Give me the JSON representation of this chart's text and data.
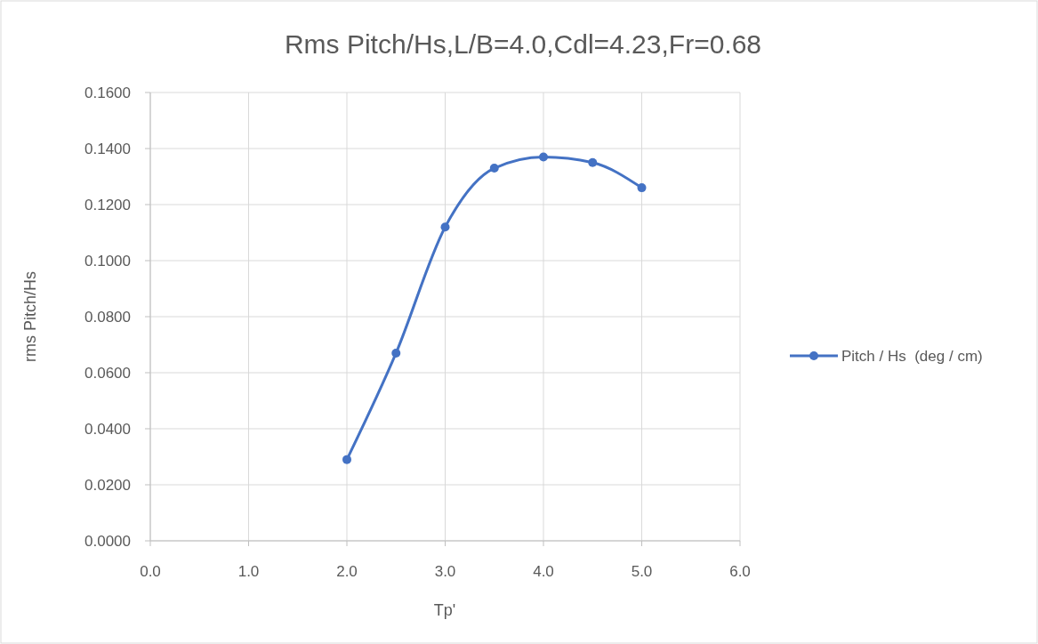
{
  "chart_data": {
    "type": "line",
    "title": "Rms Pitch/Hs,L/B=4.0,Cdl=4.23,Fr=0.68",
    "xlabel": "Tp'",
    "ylabel": "rms Pitch/Hs",
    "x": [
      2.0,
      2.5,
      3.0,
      3.5,
      4.0,
      4.5,
      5.0
    ],
    "series": [
      {
        "name": "Pitch / Hs  (deg / cm)",
        "color": "#4472c4",
        "values": [
          0.029,
          0.067,
          0.112,
          0.133,
          0.137,
          0.135,
          0.126
        ]
      }
    ],
    "xlim": [
      0,
      6
    ],
    "xticks": [
      {
        "value": 0,
        "label": "0.0"
      },
      {
        "value": 1,
        "label": "1.0"
      },
      {
        "value": 2,
        "label": "2.0"
      },
      {
        "value": 3,
        "label": "3.0"
      },
      {
        "value": 4,
        "label": "4.0"
      },
      {
        "value": 5,
        "label": "5.0"
      },
      {
        "value": 6,
        "label": "6.0"
      }
    ],
    "ylim": [
      0,
      0.16
    ],
    "yticks": [
      {
        "value": 0,
        "label": "0.0000"
      },
      {
        "value": 0.02,
        "label": "0.0200"
      },
      {
        "value": 0.04,
        "label": "0.0400"
      },
      {
        "value": 0.06,
        "label": "0.0600"
      },
      {
        "value": 0.08,
        "label": "0.0800"
      },
      {
        "value": 0.1,
        "label": "0.1000"
      },
      {
        "value": 0.12,
        "label": "0.1200"
      },
      {
        "value": 0.14,
        "label": "0.1400"
      },
      {
        "value": 0.16,
        "label": "0.1600"
      }
    ],
    "grid": true,
    "legend": "right",
    "marker": "circle",
    "line_style": "solid"
  }
}
